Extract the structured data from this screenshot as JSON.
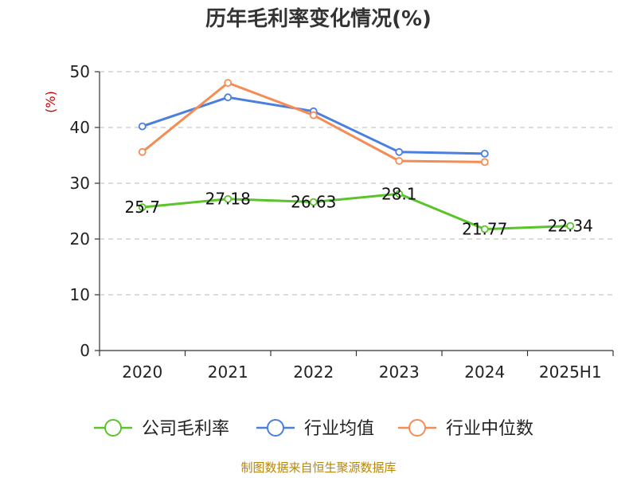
{
  "chart_data": {
    "type": "line",
    "title": "历年毛利率变化情况(%)",
    "ylabel": "(%)",
    "xlabel": "",
    "categories": [
      "2020",
      "2021",
      "2022",
      "2023",
      "2024",
      "2025H1"
    ],
    "ylim": [
      0,
      50
    ],
    "yticks": [
      "0",
      "10",
      "20",
      "30",
      "40",
      "50"
    ],
    "grid": true,
    "legend_position": "bottom",
    "series": [
      {
        "name": "公司毛利率",
        "color": "#5ac42c",
        "values": [
          25.7,
          27.18,
          26.63,
          28.1,
          21.77,
          22.34
        ],
        "labels": [
          "25.7",
          "27.18",
          "26.63",
          "28.1",
          "21.77",
          "22.34"
        ]
      },
      {
        "name": "行业均值",
        "color": "#4a7fdf",
        "values": [
          40.2,
          45.4,
          42.9,
          35.6,
          35.3,
          null
        ],
        "labels": []
      },
      {
        "name": "行业中位数",
        "color": "#f58c55",
        "values": [
          35.6,
          48.0,
          42.2,
          34.0,
          33.8,
          null
        ],
        "labels": []
      }
    ]
  },
  "source": "制图数据来自恒生聚源数据库"
}
